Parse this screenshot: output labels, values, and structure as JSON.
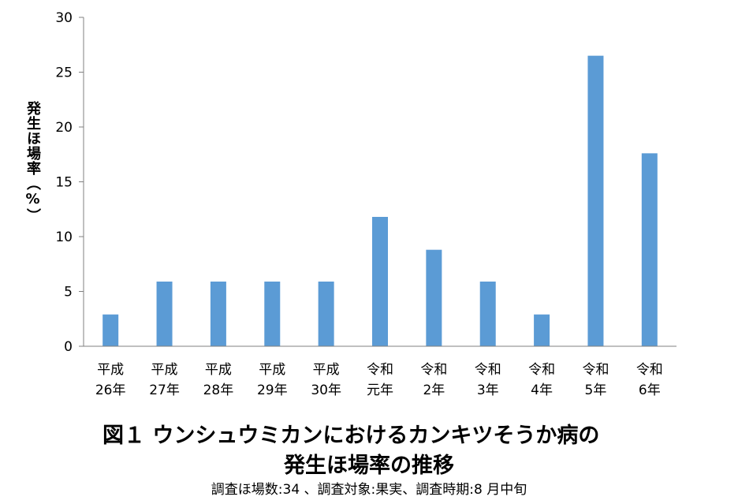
{
  "chart_data": {
    "type": "bar",
    "ylabel": "発生ほ場率（%）",
    "ylim": [
      0,
      30
    ],
    "yticks": [
      0,
      5,
      10,
      15,
      20,
      25,
      30
    ],
    "categories": [
      [
        "平成",
        "26年"
      ],
      [
        "平成",
        "27年"
      ],
      [
        "平成",
        "28年"
      ],
      [
        "平成",
        "29年"
      ],
      [
        "平成",
        "30年"
      ],
      [
        "令和",
        "元年"
      ],
      [
        "令和",
        "2年"
      ],
      [
        "令和",
        "3年"
      ],
      [
        "令和",
        "4年"
      ],
      [
        "令和",
        "5年"
      ],
      [
        "令和",
        "6年"
      ]
    ],
    "values": [
      2.9,
      5.9,
      5.9,
      5.9,
      5.9,
      11.8,
      8.8,
      5.9,
      2.9,
      26.5,
      17.6
    ],
    "bar_color": "#5b9bd5",
    "grid": false
  },
  "caption": {
    "line1": "図１ ウンシュウミカンにおけるカンキツそうか病の",
    "line2": "発生ほ場率の推移",
    "note": "調査ほ場数:34 、調査対象:果実、調査時期:8 月中旬"
  }
}
